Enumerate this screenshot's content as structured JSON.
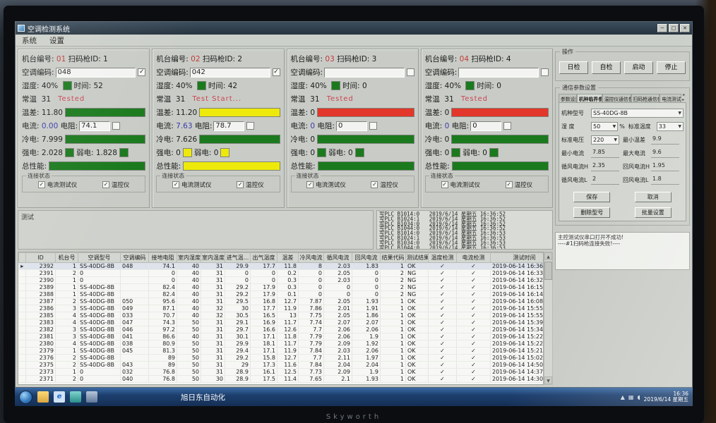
{
  "window": {
    "title": "空调检测系统",
    "menu": [
      "系统",
      "设置"
    ]
  },
  "station_labels": {
    "machine_no": "机台编号:",
    "scanner_id": "扫码枪ID:",
    "ac_code": "空调编码:",
    "humidity": "湿度:",
    "time": "时间:",
    "room_temp": "常温",
    "temp_diff": "温差:",
    "current": "电流:",
    "resistance": "电阻:",
    "cold": "冷电:",
    "strong": "强电:",
    "weak": "弱电:",
    "total": "总性能:",
    "conn_group": "连接状态",
    "conn1": "电流测试仪",
    "conn2": "温控仪"
  },
  "stations": [
    {
      "no": "01",
      "scanner": "1",
      "code": "048",
      "code_checked": true,
      "humidity": "40%",
      "time": "52",
      "room_temp": "31",
      "status": "Tested",
      "temp_diff": "11.80",
      "diff_color": "green",
      "current": "0.00",
      "resistance": "74.1",
      "cold": "7.999",
      "strong": "2.028",
      "strong_color": "green",
      "weak": "1.828",
      "weak_color": "green",
      "total_color": "green"
    },
    {
      "no": "02",
      "scanner": "2",
      "code": "042",
      "code_checked": true,
      "humidity": "40%",
      "time": "42",
      "room_temp": "31",
      "status": "Test Start...",
      "temp_diff": "11.20",
      "diff_color": "yellow",
      "current": "7.63",
      "resistance": "78.7",
      "cold": "7.626",
      "strong": "0",
      "strong_color": "yellow",
      "weak": "0",
      "weak_color": "yellow",
      "total_color": "yellow"
    },
    {
      "no": "03",
      "scanner": "3",
      "code": "",
      "code_checked": false,
      "humidity": "40%",
      "time": "0",
      "room_temp": "31",
      "status": "Tested",
      "temp_diff": "0",
      "diff_color": "red",
      "current": "0",
      "resistance": "0",
      "cold": "0",
      "strong": "0",
      "strong_color": "green",
      "weak": "0",
      "weak_color": "green",
      "total_color": "green"
    },
    {
      "no": "04",
      "scanner": "4",
      "code": "",
      "code_checked": false,
      "humidity": "40%",
      "time": "0",
      "room_temp": "31",
      "status": "Tested",
      "temp_diff": "0",
      "diff_color": "red",
      "current": "0",
      "resistance": "0",
      "cold": "0",
      "strong": "0",
      "strong_color": "green",
      "weak": "0",
      "weak_color": "green",
      "total_color": "green"
    }
  ],
  "controls": {
    "group": "操作",
    "buttons": [
      "日检",
      "自检",
      "启动",
      "停止"
    ]
  },
  "params": {
    "group": "通信参数设置",
    "tabs": [
      "参数设置",
      "机种临界参数",
      "温控仪通信参数",
      "扫码枪通信参数",
      "电流测试仪"
    ],
    "selected_tab": "机种临界参数",
    "scroll_arrows": "◂ ▸",
    "fields": {
      "model_label": "机种型号",
      "model": "SS-40DG-8B",
      "humidity_label": "湿  度",
      "humidity": "50",
      "humidity_unit": "%",
      "std_temp_label": "标准温度",
      "std_temp": "33",
      "voltage_label": "标准电压",
      "voltage": "220",
      "min_diff_label": "最小温差",
      "min_diff": "9.9",
      "min_cur_label": "最小电流",
      "min_cur": "7.85",
      "max_cur_label": "最大电流",
      "max_cur": "9.6",
      "xh_label": "循风电流H",
      "xh": "2.35",
      "hh_label": "回风电流H",
      "hh": "1.95",
      "xl_label": "循风电流L",
      "xl": "2",
      "hl_label": "回风电流L",
      "hl": "1.8"
    },
    "buttons": [
      "保存",
      "取消",
      "删除型号",
      "批量设置"
    ]
  },
  "messages": "主控测试仪串口打开不成功!\n----#1扫码枪连接失败!----",
  "test_label": "测试",
  "log": [
    "写PLC B1014:0   2019/6/14 星期五 16:36:52",
    "写PLC B1024:1   2019/6/14 星期五 16:36:52",
    "写PLC B1034:0   2019/6/14 星期五 16:36:52",
    "写PLC B1044:0   2019/6/14 星期五 16:36:52",
    "写PLC B1014:0   2019/6/14 星期五 16:36:53",
    "写PLC B1024:1   2019/6/14 星期五 16:36:53",
    "写PLC B1034:0   2019/6/14 星期五 16:36:53",
    "写PLC B1044:0   2019/6/14 星期五 16:36:53"
  ],
  "table": {
    "headers": [
      "ID",
      "机台号",
      "空调型号",
      "空调编码",
      "接地电阻",
      "室内湿度",
      "室内温度",
      "进气温...",
      "出气温度",
      "温差",
      "冷风电流",
      "循风电流",
      "回风电流",
      "结果代码",
      "测试结果",
      "温度检测",
      "电流检测",
      "测试时间"
    ],
    "rows": [
      [
        "2392",
        "1",
        "SS-40DG-8B",
        "048",
        "74.1",
        "40",
        "31",
        "29.9",
        "17.7",
        "11.8",
        "8",
        "2.03",
        "1.83",
        "1",
        "OK",
        "✓",
        "✓",
        "2019-06-14 16:36:17"
      ],
      [
        "2391",
        "2",
        "0",
        "",
        "0",
        "40",
        "31",
        "0",
        "0",
        "0.2",
        "0",
        "2.05",
        "0",
        "2",
        "NG",
        "✓",
        "✓",
        "2019-06-14 16:33:40"
      ],
      [
        "2390",
        "1",
        "0",
        "",
        "0",
        "40",
        "31",
        "0",
        "0",
        "0.3",
        "0",
        "2.03",
        "0",
        "2",
        "NG",
        "✓",
        "✓",
        "2019-06-14 16:32:08"
      ],
      [
        "2389",
        "1",
        "SS-40DG-8B",
        "",
        "82.4",
        "40",
        "31",
        "29.2",
        "17.9",
        "0.3",
        "0",
        "0",
        "0",
        "2",
        "NG",
        "✓",
        "✓",
        "2019-06-14 16:15:48"
      ],
      [
        "2388",
        "1",
        "SS-40DG-8B",
        "",
        "82.4",
        "40",
        "31",
        "29.2",
        "17.9",
        "0.1",
        "0",
        "0",
        "0",
        "2",
        "NG",
        "✓",
        "✓",
        "2019-06-14 16:14:38"
      ],
      [
        "2387",
        "2",
        "SS-40DG-8B",
        "050",
        "95.6",
        "40",
        "31",
        "29.5",
        "16.8",
        "12.7",
        "7.87",
        "2.05",
        "1.93",
        "1",
        "OK",
        "✓",
        "✓",
        "2019-06-14 16:08:39"
      ],
      [
        "2386",
        "3",
        "SS-40DG-8B",
        "049",
        "87.1",
        "40",
        "32",
        "30",
        "17.7",
        "11.9",
        "7.86",
        "2.01",
        "1.91",
        "1",
        "OK",
        "✓",
        "✓",
        "2019-06-14 15:55:59"
      ],
      [
        "2385",
        "4",
        "SS-40DG-8B",
        "033",
        "70.7",
        "40",
        "32",
        "30.5",
        "16.5",
        "13",
        "7.75",
        "2.05",
        "1.86",
        "1",
        "OK",
        "✓",
        "✓",
        "2019-06-14 15:55:15"
      ],
      [
        "2383",
        "4",
        "SS-40DG-8B",
        "047",
        "74.3",
        "50",
        "31",
        "29.1",
        "16.9",
        "11.7",
        "7.74",
        "2.07",
        "2.07",
        "1",
        "OK",
        "✓",
        "✓",
        "2019-06-14 15:39:28"
      ],
      [
        "2382",
        "3",
        "SS-40DG-8B",
        "046",
        "97.2",
        "50",
        "31",
        "29.7",
        "16.6",
        "12.6",
        "7.7",
        "2.06",
        "2.06",
        "1",
        "OK",
        "✓",
        "✓",
        "2019-06-14 15:34:19"
      ],
      [
        "2381",
        "3",
        "SS-40DG-8B",
        "041",
        "86.6",
        "40",
        "31",
        "30.1",
        "17.1",
        "11.8",
        "7.79",
        "2.06",
        "1.9",
        "1",
        "OK",
        "✓",
        "✓",
        "2019-06-14 15:22:29"
      ],
      [
        "2380",
        "4",
        "SS-40DG-8B",
        "038",
        "80.9",
        "50",
        "31",
        "29.9",
        "18.1",
        "11.7",
        "7.79",
        "2.09",
        "1.92",
        "1",
        "OK",
        "✓",
        "✓",
        "2019-06-14 15:22:04"
      ],
      [
        "2379",
        "1",
        "SS-40DG-8B",
        "045",
        "81.3",
        "50",
        "31",
        "29.4",
        "17.1",
        "11.9",
        "7.84",
        "2.03",
        "2.06",
        "1",
        "OK",
        "✓",
        "✓",
        "2019-06-14 15:21:36"
      ],
      [
        "2376",
        "2",
        "SS-40DG-8B",
        "",
        "89",
        "50",
        "31",
        "29.2",
        "15.8",
        "12.7",
        "7.7",
        "2.11",
        "1.97",
        "1",
        "OK",
        "✓",
        "✓",
        "2019-06-14 15:02:55"
      ],
      [
        "2375",
        "2",
        "SS-40DG-8B",
        "043",
        "89",
        "50",
        "31",
        "29",
        "17.3",
        "11.6",
        "7.84",
        "2.04",
        "2.04",
        "1",
        "OK",
        "✓",
        "✓",
        "2019-06-14 14:50:59"
      ],
      [
        "2373",
        "1",
        "0",
        "032",
        "76.8",
        "50",
        "31",
        "28.9",
        "16.1",
        "12.5",
        "7.73",
        "2.09",
        "1.9",
        "1",
        "OK",
        "✓",
        "✓",
        "2019-06-14 14:37:15"
      ],
      [
        "2371",
        "2",
        "0",
        "040",
        "76.8",
        "50",
        "30",
        "28.9",
        "17.5",
        "11.4",
        "7.65",
        "2.1",
        "1.93",
        "1",
        "OK",
        "✓",
        "✓",
        "2019-06-14 14:30:32"
      ]
    ]
  },
  "taskbar": {
    "app_label": "旭日东自动化",
    "tray_time": "16:36",
    "tray_date": "2019/6/14 星期五"
  },
  "monitor_brand": "Skyworth",
  "colors": {
    "green": "#1b7a1d",
    "yellow": "#ede90a",
    "red": "#e2372a"
  }
}
